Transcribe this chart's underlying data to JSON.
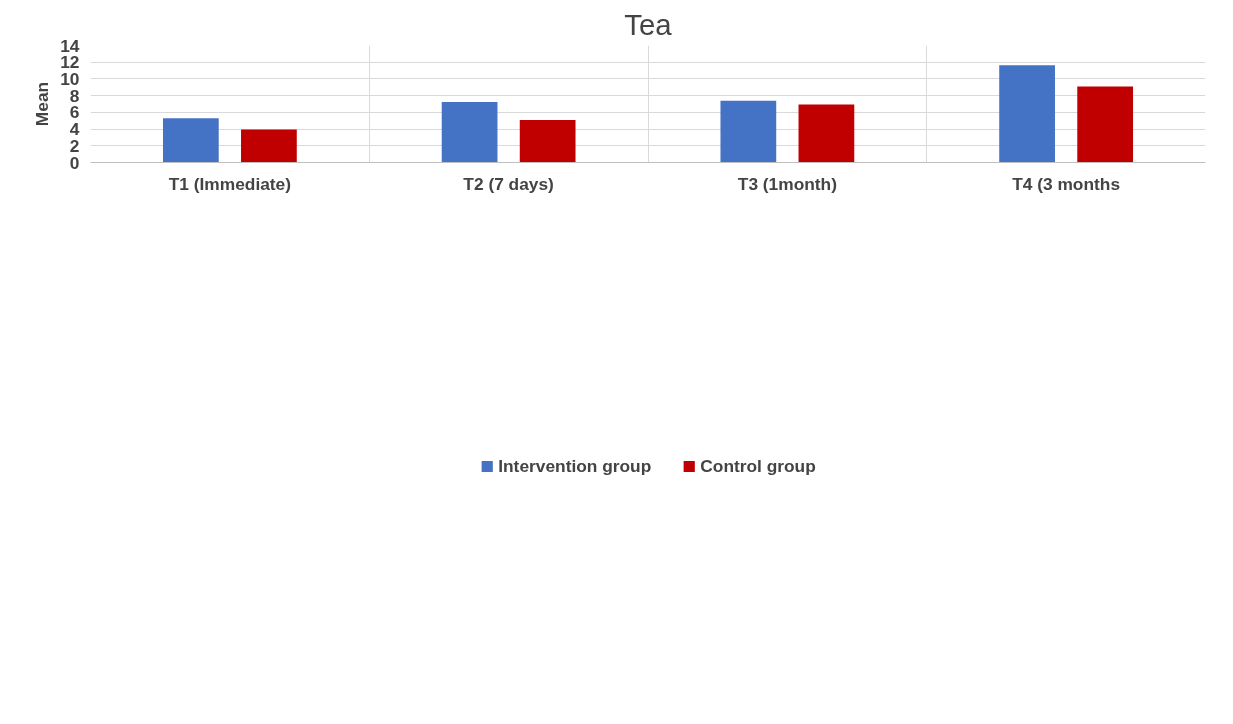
{
  "chart_data": {
    "type": "bar",
    "title": "Tea",
    "ylabel": "Mean",
    "categories": [
      "T1 (Immediate)",
      "T2 (7 days)",
      "T3 (1month)",
      "T4 (3 months"
    ],
    "series": [
      {
        "name": "Intervention group",
        "color": "#4472c4",
        "values": [
          5.3,
          7.25,
          7.4,
          11.65
        ]
      },
      {
        "name": "Control group",
        "color": "#c00000",
        "values": [
          3.95,
          5.1,
          6.95,
          9.1
        ]
      }
    ],
    "ylim": [
      0,
      14
    ],
    "yticks": [
      0,
      2,
      4,
      6,
      8,
      10,
      12,
      14
    ],
    "grid": true,
    "legend": "bottom"
  }
}
